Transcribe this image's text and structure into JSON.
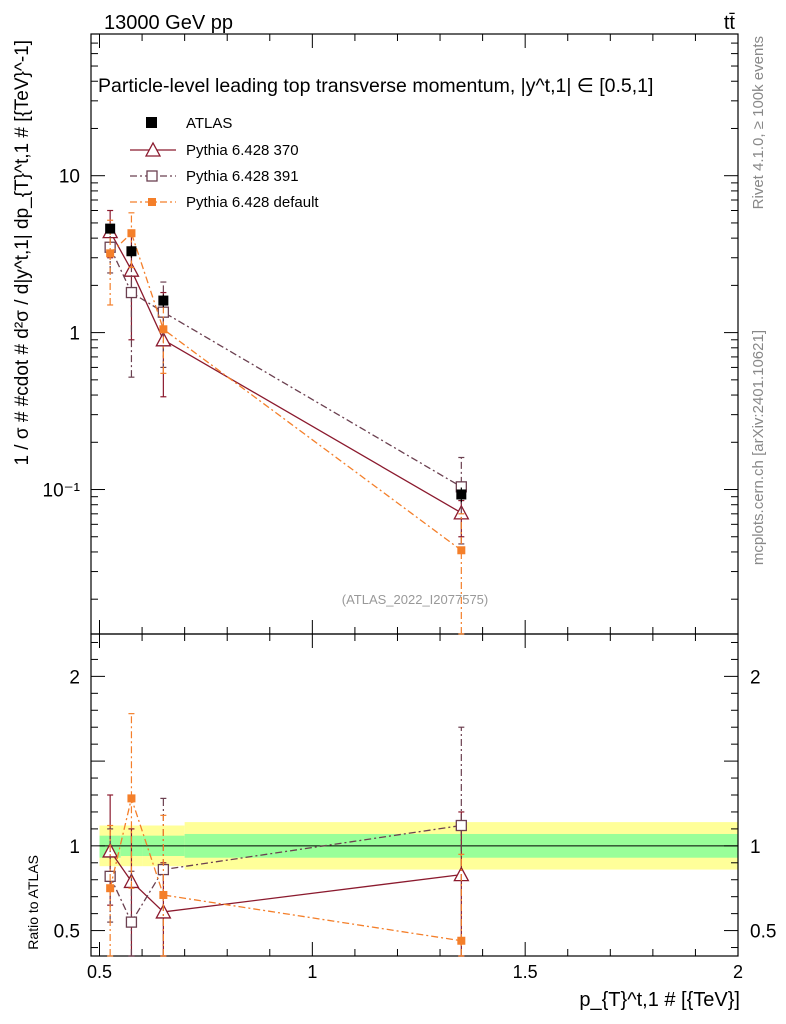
{
  "header": {
    "left": "13000 GeV pp",
    "right": "tt̄",
    "title": "Particle-level leading top transverse momentum, |y^t,1| ∈ [0.5,1]",
    "watermark": "(ATLAS_2022_I2077575)"
  },
  "side": {
    "rivet": "Rivet 4.1.0, ≥ 100k events",
    "mcplots": "mcplots.cern.ch [arXiv:2401.10621]"
  },
  "axes": {
    "main_ylabel": "1 / σ # #cdot # d²σ / d|y^t,1| dp_{T}^t,1 # [{TeV}^-1]",
    "ratio_ylabel": "Ratio to ATLAS",
    "xlabel": "p_{T}^t,1 # [{TeV}]"
  },
  "legend": {
    "atlas": "ATLAS",
    "p370": "Pythia 6.428 370",
    "p391": "Pythia 6.428 391",
    "pdef": "Pythia 6.428 default"
  },
  "colors": {
    "atlas": "#000000",
    "p370": "#8b1a2e",
    "p391": "#6b4050",
    "pdef": "#f47f2a",
    "band_inner": "#99ff99",
    "band_outer": "#ffff99"
  },
  "chart_data": [
    {
      "type": "scatter",
      "panel": "main",
      "yscale": "log",
      "xlim": [
        0.48,
        2.0
      ],
      "ylim": [
        0.012,
        80
      ],
      "x_ticks": [
        "0.5",
        "1",
        "1.5",
        "2"
      ],
      "y_ticks": [
        "10⁻¹",
        "1",
        "10"
      ],
      "series": [
        {
          "name": "ATLAS",
          "x": [
            0.525,
            0.575,
            0.65,
            1.35
          ],
          "y": [
            4.6,
            3.3,
            1.6,
            0.093
          ],
          "err": [
            0.3,
            0.3,
            0.15,
            0.01
          ]
        },
        {
          "name": "Pythia 6.428 370",
          "x": [
            0.525,
            0.575,
            0.65,
            1.35
          ],
          "y": [
            4.4,
            2.5,
            0.9,
            0.071
          ],
          "lo": [
            3.0,
            0.9,
            0.39,
            0.05
          ],
          "hi": [
            6.0,
            4.2,
            1.8,
            0.085
          ]
        },
        {
          "name": "Pythia 6.428 391",
          "x": [
            0.525,
            0.575,
            0.65,
            1.35
          ],
          "y": [
            3.5,
            1.8,
            1.35,
            0.104
          ],
          "lo": [
            2.4,
            0.52,
            0.6,
            0.045
          ],
          "hi": [
            4.8,
            3.2,
            2.1,
            0.16
          ]
        },
        {
          "name": "Pythia 6.428 default",
          "x": [
            0.525,
            0.575,
            0.65,
            1.35
          ],
          "y": [
            3.2,
            4.3,
            1.05,
            0.041
          ],
          "lo": [
            1.5,
            2.6,
            0.55,
            0.012
          ],
          "hi": [
            5.2,
            5.8,
            1.7,
            0.07
          ]
        }
      ]
    },
    {
      "type": "scatter",
      "panel": "ratio",
      "xlim": [
        0.48,
        2.0
      ],
      "ylim": [
        0.35,
        2.25
      ],
      "y_ticks": [
        "0.5",
        "1",
        "2"
      ],
      "bands": [
        {
          "x0": 0.5,
          "x1": 0.55,
          "inner": [
            0.93,
            1.06
          ],
          "outer": [
            0.88,
            1.12
          ]
        },
        {
          "x0": 0.55,
          "x1": 0.6,
          "inner": [
            0.94,
            1.06
          ],
          "outer": [
            0.88,
            1.12
          ]
        },
        {
          "x0": 0.6,
          "x1": 0.7,
          "inner": [
            0.94,
            1.06
          ],
          "outer": [
            0.88,
            1.12
          ]
        },
        {
          "x0": 0.7,
          "x1": 2.0,
          "inner": [
            0.93,
            1.07
          ],
          "outer": [
            0.86,
            1.14
          ]
        }
      ],
      "series": [
        {
          "name": "Pythia 6.428 370",
          "x": [
            0.525,
            0.575,
            0.65,
            1.35
          ],
          "y": [
            0.97,
            0.79,
            0.61,
            0.83
          ],
          "lo": [
            0.65,
            0.35,
            0.35,
            0.35
          ],
          "hi": [
            1.3,
            1.1,
            0.9,
            1.2
          ]
        },
        {
          "name": "Pythia 6.428 391",
          "x": [
            0.525,
            0.575,
            0.65,
            1.35
          ],
          "y": [
            0.82,
            0.55,
            0.86,
            1.12
          ],
          "lo": [
            0.55,
            0.35,
            0.35,
            0.35
          ],
          "hi": [
            1.1,
            0.85,
            1.28,
            1.7
          ]
        },
        {
          "name": "Pythia 6.428 default",
          "x": [
            0.525,
            0.575,
            0.65,
            1.35
          ],
          "y": [
            0.75,
            1.28,
            0.71,
            0.44
          ],
          "lo": [
            0.35,
            0.75,
            0.35,
            0.35
          ],
          "hi": [
            1.12,
            1.78,
            1.18,
            0.95
          ]
        }
      ]
    }
  ]
}
